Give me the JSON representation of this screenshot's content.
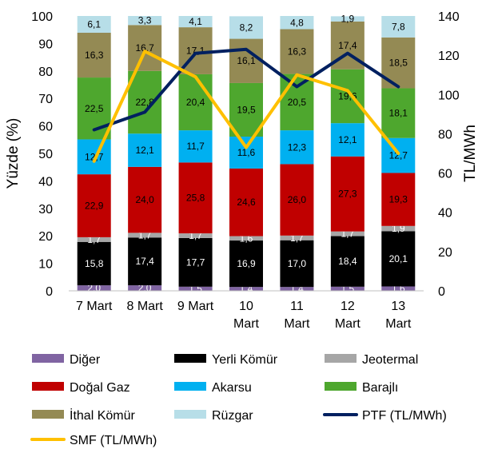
{
  "chart_data": {
    "type": "bar",
    "stacked": true,
    "categories": [
      "7 Mart",
      "8 Mart",
      "9 Mart",
      "10 Mart",
      "11 Mart",
      "12 Mart",
      "13 Mart"
    ],
    "category_lines": [
      [
        "7 Mart"
      ],
      [
        "8 Mart"
      ],
      [
        "9 Mart"
      ],
      [
        "10",
        "Mart"
      ],
      [
        "11",
        "Mart"
      ],
      [
        "12",
        "Mart"
      ],
      [
        "13",
        "Mart"
      ]
    ],
    "ylabel": "Yüzde (%)",
    "y2label": "TL/MWh",
    "ylim": [
      0,
      100
    ],
    "y2lim": [
      0,
      140
    ],
    "yticks": [
      0,
      10,
      20,
      30,
      40,
      50,
      60,
      70,
      80,
      90,
      100
    ],
    "y2ticks": [
      0,
      20,
      40,
      60,
      80,
      100,
      120,
      140
    ],
    "grid": false,
    "legend_position": "bottom",
    "series": [
      {
        "name": "Diğer",
        "color": "#8064a2",
        "label_color": "#ffffff",
        "values": [
          2.0,
          2.0,
          1.5,
          1.4,
          1.4,
          1.5,
          1.6
        ],
        "labels": [
          "2,0",
          "2,0",
          "1,5",
          "1,4",
          "1,4",
          "1,5",
          "1,6"
        ]
      },
      {
        "name": "Yerli Kömür",
        "color": "#000000",
        "label_color": "#ffffff",
        "values": [
          15.8,
          17.4,
          17.7,
          16.9,
          17.0,
          18.4,
          20.1
        ],
        "labels": [
          "15,8",
          "17,4",
          "17,7",
          "16,9",
          "17,0",
          "18,4",
          "20,1"
        ]
      },
      {
        "name": "Jeotermal",
        "color": "#a6a6a6",
        "label_color": "#ffffff",
        "values": [
          1.7,
          1.7,
          1.7,
          1.6,
          1.7,
          1.7,
          1.9
        ],
        "labels": [
          "1,7",
          "1,7",
          "1,7",
          "1,6",
          "1,7",
          "1,7",
          "1,9"
        ]
      },
      {
        "name": "Doğal Gaz",
        "color": "#c00000",
        "label_color": "#000000",
        "values": [
          22.9,
          24.0,
          25.8,
          24.6,
          26.0,
          27.3,
          19.3
        ],
        "labels": [
          "22,9",
          "24,0",
          "25,8",
          "24,6",
          "26,0",
          "27,3",
          "19,3"
        ]
      },
      {
        "name": "Akarsu",
        "color": "#00b0f0",
        "label_color": "#000000",
        "values": [
          12.7,
          12.1,
          11.7,
          11.6,
          12.3,
          12.1,
          12.7
        ],
        "labels": [
          "12,7",
          "12,1",
          "11,7",
          "11,6",
          "12,3",
          "12,1",
          "12,7"
        ]
      },
      {
        "name": "Barajlı",
        "color": "#4ea72e",
        "label_color": "#000000",
        "values": [
          22.5,
          22.8,
          20.4,
          19.5,
          20.5,
          19.6,
          18.1
        ],
        "labels": [
          "22,5",
          "22,8",
          "20,4",
          "19,5",
          "20,5",
          "19,6",
          "18,1"
        ]
      },
      {
        "name": "İthal Kömür",
        "color": "#948a54",
        "label_color": "#000000",
        "values": [
          16.3,
          16.7,
          17.1,
          16.1,
          16.3,
          17.4,
          18.5
        ],
        "labels": [
          "16,3",
          "16,7",
          "17,1",
          "16,1",
          "16,3",
          "17,4",
          "18,5"
        ]
      },
      {
        "name": "Rüzgar",
        "color": "#b7dee8",
        "label_color": "#000000",
        "values": [
          6.1,
          3.3,
          4.1,
          8.2,
          4.8,
          1.9,
          7.8
        ],
        "labels": [
          "6,1",
          "3,3",
          "4,1",
          "8,2",
          "4,8",
          "1,9",
          "7,8"
        ]
      }
    ],
    "line_series": [
      {
        "name": "PTF (TL/MWh)",
        "color": "#002060",
        "axis": "right",
        "values": [
          82,
          91,
          121,
          123,
          104,
          121,
          104
        ]
      },
      {
        "name": "SMF (TL/MWh)",
        "color": "#ffc000",
        "axis": "right",
        "values": [
          66,
          122,
          109,
          73,
          110,
          102,
          70
        ]
      }
    ]
  }
}
